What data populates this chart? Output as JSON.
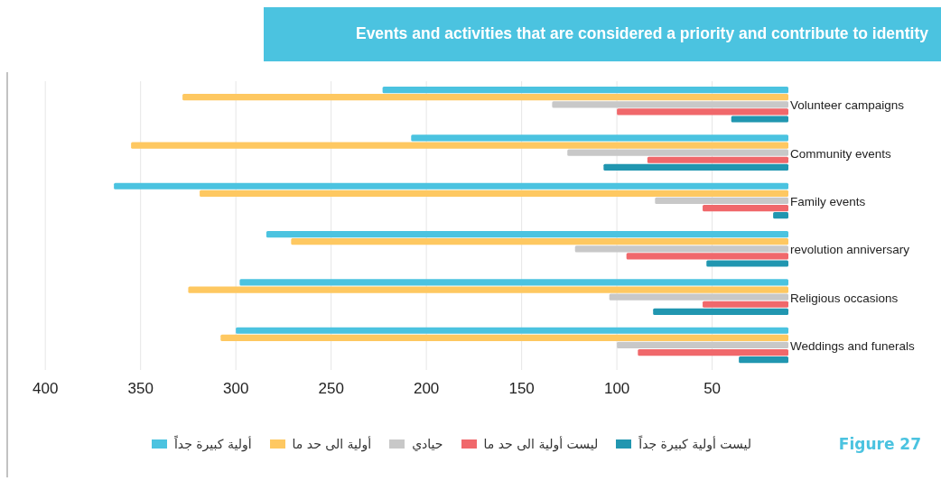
{
  "chart_data": {
    "type": "bar",
    "orientation": "horizontal",
    "title": "Events and activities that are considered a priority and contribute to identity",
    "categories": [
      "Volunteer campaigns",
      "Community events",
      "Family events",
      "revolution anniversary",
      "Religious occasions",
      "Weddings and funerals"
    ],
    "series": [
      {
        "name": "أولية كبيرة جداً",
        "color": "#4bc3e0",
        "values": [
          223,
          208,
          364,
          284,
          298,
          300
        ]
      },
      {
        "name": "أولية الى حد ما",
        "color": "#fec861",
        "values": [
          328,
          355,
          319,
          271,
          325,
          308
        ]
      },
      {
        "name": "حيادي",
        "color": "#c8c8c8",
        "values": [
          134,
          126,
          80,
          122,
          104,
          100
        ]
      },
      {
        "name": "ليست أولية الى حد ما",
        "color": "#f0686b",
        "values": [
          100,
          84,
          55,
          95,
          55,
          89
        ]
      },
      {
        "name": "ليست أولية كبيرة جداً",
        "color": "#2196b0",
        "values": [
          40,
          107,
          18,
          53,
          81,
          36
        ]
      }
    ],
    "xlim": [
      420,
      10
    ],
    "xticks": [
      400,
      350,
      300,
      250,
      200,
      150,
      100,
      50
    ],
    "grid": "x",
    "legend": "bottom",
    "annotations": [
      "Figure 27"
    ]
  }
}
